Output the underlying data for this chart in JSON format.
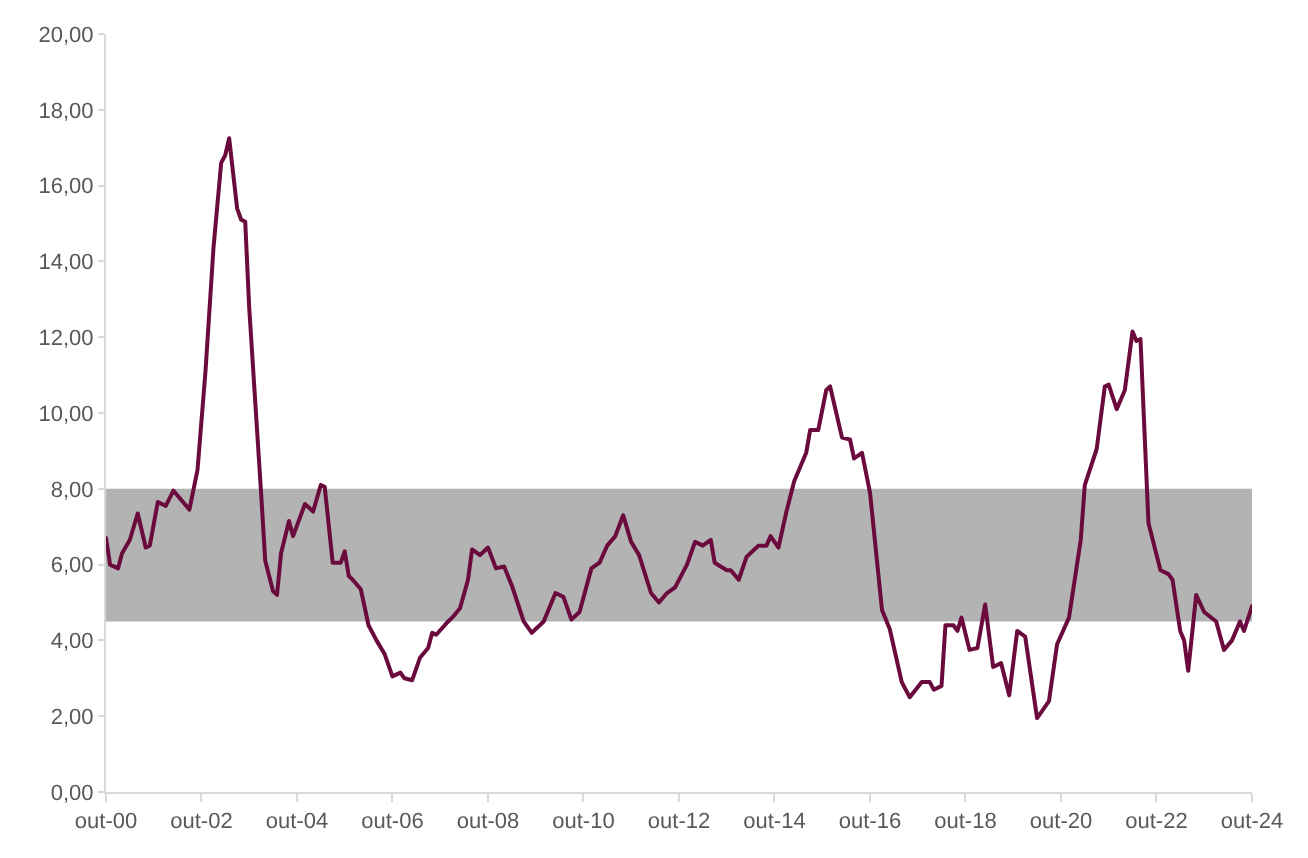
{
  "chart_data": {
    "type": "line",
    "x": [
      "2000-10",
      "2000-11",
      "2001-01",
      "2001-02",
      "2001-04",
      "2001-06",
      "2001-08",
      "2001-09",
      "2001-11",
      "2002-01",
      "2002-03",
      "2002-07",
      "2002-09",
      "2002-11",
      "2003-01",
      "2003-03",
      "2003-04",
      "2003-05",
      "2003-07",
      "2003-08",
      "2003-09",
      "2003-10",
      "2004-01",
      "2004-02",
      "2004-04",
      "2004-05",
      "2004-06",
      "2004-08",
      "2004-09",
      "2004-12",
      "2005-02",
      "2005-04",
      "2005-05",
      "2005-07",
      "2005-09",
      "2005-10",
      "2005-11",
      "2005-12",
      "2006-02",
      "2006-04",
      "2006-06",
      "2006-08",
      "2006-10",
      "2006-12",
      "2007-01",
      "2007-03",
      "2007-05",
      "2007-07",
      "2007-08",
      "2007-09",
      "2007-12",
      "2008-01",
      "2008-03",
      "2008-05",
      "2008-06",
      "2008-08",
      "2008-10",
      "2008-12",
      "2009-02",
      "2009-04",
      "2009-07",
      "2009-09",
      "2009-12",
      "2010-03",
      "2010-05",
      "2010-07",
      "2010-09",
      "2010-12",
      "2011-02",
      "2011-04",
      "2011-06",
      "2011-08",
      "2011-10",
      "2011-12",
      "2012-03",
      "2012-05",
      "2012-07",
      "2012-09",
      "2012-12",
      "2013-02",
      "2013-04",
      "2013-06",
      "2013-07",
      "2013-10",
      "2013-11",
      "2014-01",
      "2014-03",
      "2014-06",
      "2014-08",
      "2014-09",
      "2014-11",
      "2015-01",
      "2015-03",
      "2015-06",
      "2015-07",
      "2015-09",
      "2015-11",
      "2015-12",
      "2016-03",
      "2016-05",
      "2016-06",
      "2016-08",
      "2016-10",
      "2017-01",
      "2017-03",
      "2017-06",
      "2017-08",
      "2017-11",
      "2018-01",
      "2018-02",
      "2018-04",
      "2018-05",
      "2018-07",
      "2018-08",
      "2018-09",
      "2018-11",
      "2019-01",
      "2019-03",
      "2019-05",
      "2019-07",
      "2019-09",
      "2019-11",
      "2020-01",
      "2020-04",
      "2020-07",
      "2020-09",
      "2020-12",
      "2021-03",
      "2021-04",
      "2021-07",
      "2021-09",
      "2021-10",
      "2021-12",
      "2022-02",
      "2022-04",
      "2022-05",
      "2022-06",
      "2022-08",
      "2022-11",
      "2023-01",
      "2023-02",
      "2023-04",
      "2023-05",
      "2023-06",
      "2023-08",
      "2023-10",
      "2024-01",
      "2024-03",
      "2024-05",
      "2024-07",
      "2024-08",
      "2024-10"
    ],
    "series": [
      {
        "color": "#6b0a3c",
        "values": [
          6.7,
          6.0,
          5.9,
          6.3,
          6.65,
          7.35,
          6.45,
          6.5,
          7.65,
          7.55,
          7.95,
          7.45,
          8.5,
          11.1,
          14.35,
          16.6,
          16.8,
          17.25,
          15.4,
          15.1,
          15.05,
          12.8,
          7.85,
          6.1,
          5.3,
          5.2,
          6.3,
          7.15,
          6.75,
          7.6,
          7.4,
          8.1,
          8.05,
          6.05,
          6.05,
          6.35,
          5.7,
          5.6,
          5.35,
          4.4,
          4.0,
          3.65,
          3.05,
          3.15,
          3.0,
          2.95,
          3.55,
          3.8,
          4.2,
          4.15,
          4.5,
          4.6,
          4.85,
          5.6,
          6.4,
          6.25,
          6.45,
          5.9,
          5.95,
          5.45,
          4.5,
          4.2,
          4.5,
          5.25,
          5.15,
          4.55,
          4.75,
          5.9,
          6.05,
          6.5,
          6.75,
          7.3,
          6.6,
          6.25,
          5.25,
          5.0,
          5.25,
          5.4,
          6.0,
          6.6,
          6.5,
          6.65,
          6.05,
          5.85,
          5.85,
          5.6,
          6.2,
          6.5,
          6.5,
          6.75,
          6.45,
          7.4,
          8.2,
          8.95,
          9.55,
          9.55,
          10.6,
          10.7,
          9.35,
          9.3,
          8.8,
          8.95,
          7.9,
          4.8,
          4.3,
          2.9,
          2.5,
          2.9,
          2.9,
          2.7,
          2.8,
          4.4,
          4.4,
          4.25,
          4.6,
          3.75,
          3.8,
          4.95,
          3.3,
          3.4,
          2.55,
          4.25,
          4.1,
          1.95,
          2.4,
          3.9,
          4.6,
          6.65,
          8.1,
          9.05,
          10.7,
          10.75,
          10.1,
          10.6,
          12.15,
          11.9,
          11.95,
          7.1,
          5.85,
          5.75,
          5.6,
          4.25,
          4.0,
          3.2,
          5.2,
          4.75,
          4.5,
          3.75,
          4.0,
          4.5,
          4.25,
          4.9
        ]
      }
    ],
    "bands": [
      {
        "axis": "y",
        "from": 4.5,
        "to": 8.0,
        "color": "#b3b3b3"
      }
    ],
    "xlim": [
      "2000-10",
      "2024-10"
    ],
    "xticks": [
      {
        "value": "2000-10",
        "label": "out-00"
      },
      {
        "value": "2002-10",
        "label": "out-02"
      },
      {
        "value": "2004-10",
        "label": "out-04"
      },
      {
        "value": "2006-10",
        "label": "out-06"
      },
      {
        "value": "2008-10",
        "label": "out-08"
      },
      {
        "value": "2010-10",
        "label": "out-10"
      },
      {
        "value": "2012-10",
        "label": "out-12"
      },
      {
        "value": "2014-10",
        "label": "out-14"
      },
      {
        "value": "2016-10",
        "label": "out-16"
      },
      {
        "value": "2018-10",
        "label": "out-18"
      },
      {
        "value": "2020-10",
        "label": "out-20"
      },
      {
        "value": "2022-10",
        "label": "out-22"
      },
      {
        "value": "2024-10",
        "label": "out-24"
      }
    ],
    "ylim": [
      0,
      20
    ],
    "yticks": [
      {
        "value": 0,
        "label": "0,00"
      },
      {
        "value": 2,
        "label": "2,00"
      },
      {
        "value": 4,
        "label": "4,00"
      },
      {
        "value": 6,
        "label": "6,00"
      },
      {
        "value": 8,
        "label": "8,00"
      },
      {
        "value": 10,
        "label": "10,00"
      },
      {
        "value": 12,
        "label": "12,00"
      },
      {
        "value": 14,
        "label": "14,00"
      },
      {
        "value": 16,
        "label": "16,00"
      },
      {
        "value": 18,
        "label": "18,00"
      },
      {
        "value": 20,
        "label": "20,00"
      }
    ],
    "marker": "none",
    "line_style": "solid"
  }
}
